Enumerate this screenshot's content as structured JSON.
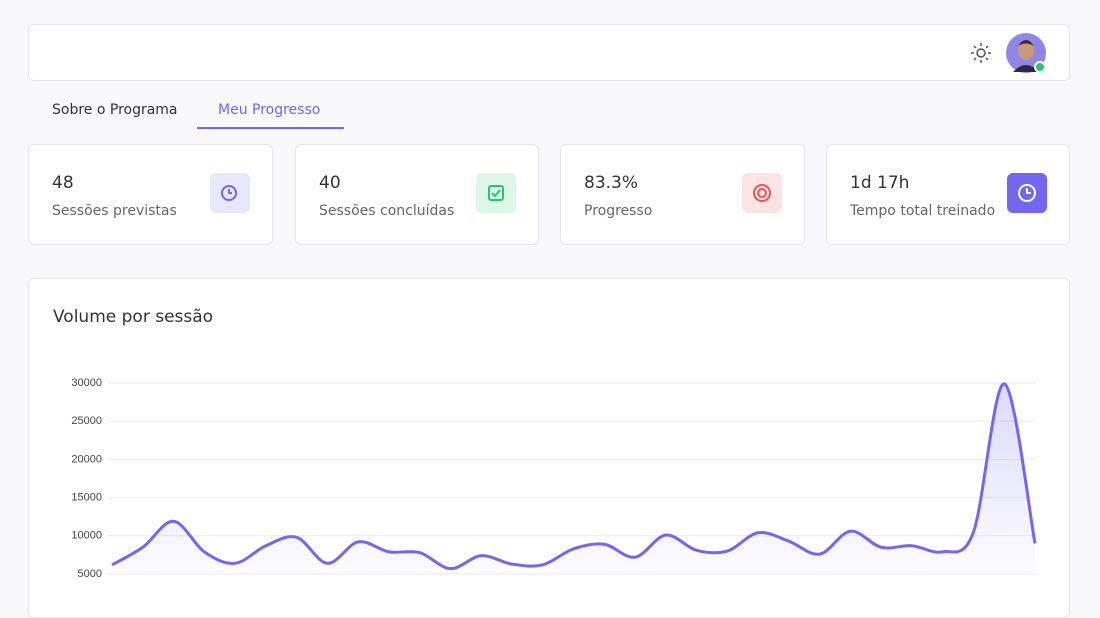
{
  "tabs": [
    "Sobre o Programa",
    "Meu Progresso"
  ],
  "stats": [
    {
      "value": "48",
      "label": "Sessões previstas"
    },
    {
      "value": "40",
      "label": "Sessões concluídas"
    },
    {
      "value": "83.3%",
      "label": "Progresso"
    },
    {
      "value": "1d 17h",
      "label": "Tempo total treinado"
    }
  ],
  "chart_data": {
    "type": "line",
    "title": "Volume por sessão",
    "categories": [
      null,
      null,
      null,
      null,
      null,
      null,
      null,
      null,
      null,
      null,
      null,
      null,
      null,
      null,
      null,
      null,
      null,
      null,
      null,
      null,
      null,
      null,
      null,
      null,
      null,
      null,
      null,
      null,
      null,
      null,
      null
    ],
    "values": [
      6200,
      8500,
      11900,
      7900,
      6400,
      8700,
      9800,
      6400,
      9200,
      7900,
      7800,
      5700,
      7400,
      6300,
      6200,
      8300,
      8900,
      7200,
      10100,
      8100,
      8000,
      10400,
      9300,
      7600,
      10600,
      8500,
      8700,
      7900,
      10500,
      29900,
      9000
    ],
    "color": "#7367f0",
    "ylim": [
      5000,
      30000
    ],
    "yticks": [
      5000,
      10000,
      15000,
      20000,
      25000,
      30000
    ],
    "grid": true
  }
}
